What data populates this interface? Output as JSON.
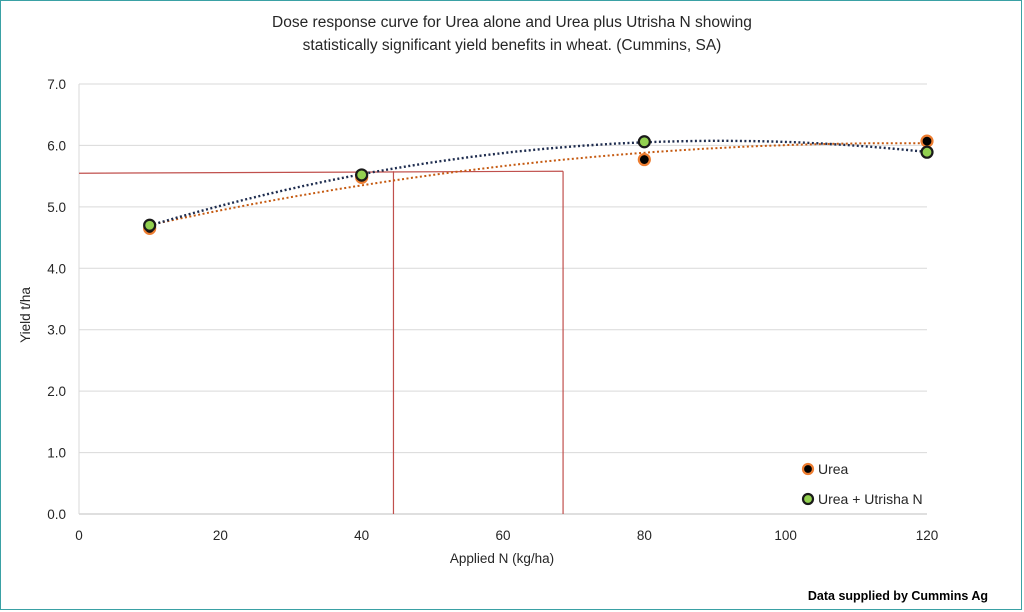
{
  "chart_data": {
    "type": "scatter",
    "title_lines": [
      "Dose response curve for Urea alone and Urea plus Utrisha N showing",
      "statistically significant yield benefits in wheat. (Cummins, SA)"
    ],
    "xlabel": "Applied N (kg/ha)",
    "ylabel": "Yield t/ha",
    "xlim": [
      0,
      120
    ],
    "ylim": [
      0,
      7
    ],
    "x_ticks": [
      "0",
      "20",
      "40",
      "60",
      "80",
      "100",
      "120"
    ],
    "y_ticks": [
      "0.0",
      "1.0",
      "2.0",
      "3.0",
      "4.0",
      "5.0",
      "6.0",
      "7.0"
    ],
    "grid": "horizontal",
    "legend_position": "bottom-right",
    "series": [
      {
        "name": "Urea",
        "marker_color": "#000000",
        "edge_color": "#ed7d31",
        "trend_color": "#c55a11",
        "x": [
          10,
          40,
          80,
          120
        ],
        "y": [
          4.65,
          5.48,
          5.77,
          6.07
        ]
      },
      {
        "name": "Urea + Utrisha N",
        "marker_color": "#92d050",
        "edge_color": "#1a1a1a",
        "trend_color": "#1f2d4f",
        "x": [
          10,
          40,
          80,
          120
        ],
        "y": [
          4.7,
          5.52,
          6.06,
          5.89
        ]
      }
    ],
    "reference_lines": {
      "color": "#c0504d",
      "yield_level": 5.58,
      "x_utrisha": 44.5,
      "x_urea": 68.5
    },
    "source_note": "Data supplied by Cummins Ag"
  }
}
